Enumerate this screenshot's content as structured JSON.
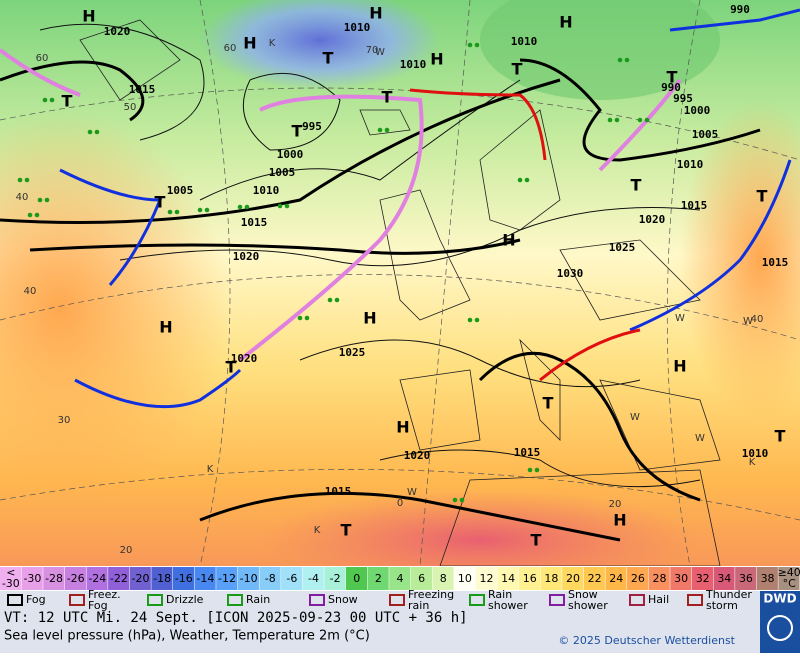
{
  "map": {
    "isobar_labels": [
      "1020",
      "1010",
      "1010",
      "1010",
      "1015",
      "995",
      "1000",
      "1005",
      "1010",
      "1005",
      "1015",
      "1020",
      "1030",
      "1025",
      "1020",
      "1015",
      "1010",
      "1005",
      "1000",
      "995",
      "990",
      "990",
      "1025",
      "1020",
      "1020",
      "1015",
      "1015",
      "1010",
      "1015"
    ],
    "high_labels": [
      "H",
      "H",
      "H",
      "H",
      "H",
      "H",
      "H",
      "H",
      "H",
      "H",
      "H"
    ],
    "low_labels": [
      "T",
      "T",
      "T",
      "T",
      "T",
      "T",
      "T",
      "T",
      "T",
      "T",
      "T",
      "T",
      "T",
      "T"
    ],
    "field_labels": [
      "60",
      "60",
      "50",
      "70",
      "40",
      "40",
      "30",
      "20",
      "0",
      "20",
      "40",
      "K",
      "W",
      "W",
      "K",
      "K",
      "W",
      "K",
      "W",
      "W",
      "W"
    ]
  },
  "scale": {
    "low_end": {
      "lines": [
        "<",
        "-30"
      ],
      "color": "#f0b0f0"
    },
    "high_end": {
      "lines": [
        "≥40",
        "°C"
      ],
      "color": "#a89080"
    },
    "steps": [
      {
        "label": "-30",
        "color": "#e8a0e8"
      },
      {
        "label": "-28",
        "color": "#d890e0"
      },
      {
        "label": "-26",
        "color": "#c880e0"
      },
      {
        "label": "-24",
        "color": "#b070e0"
      },
      {
        "label": "-22",
        "color": "#9060d8"
      },
      {
        "label": "-20",
        "color": "#7060d0"
      },
      {
        "label": "-18",
        "color": "#5060d0"
      },
      {
        "label": "-16",
        "color": "#4070e0"
      },
      {
        "label": "-14",
        "color": "#4888f0"
      },
      {
        "label": "-12",
        "color": "#58a0f8"
      },
      {
        "label": "-10",
        "color": "#70b8f8"
      },
      {
        "label": "-8",
        "color": "#88ccf8"
      },
      {
        "label": "-6",
        "color": "#a0e0f8"
      },
      {
        "label": "-4",
        "color": "#b0f0f0"
      },
      {
        "label": "-2",
        "color": "#a8f0d8"
      },
      {
        "label": "0",
        "color": "#50c850"
      },
      {
        "label": "2",
        "color": "#70d870"
      },
      {
        "label": "4",
        "color": "#98e488"
      },
      {
        "label": "6",
        "color": "#b8ec98"
      },
      {
        "label": "8",
        "color": "#d8f4b0"
      },
      {
        "label": "10",
        "color": "#fffff4"
      },
      {
        "label": "12",
        "color": "#fffbd0"
      },
      {
        "label": "14",
        "color": "#fff8b0"
      },
      {
        "label": "16",
        "color": "#fff090"
      },
      {
        "label": "18",
        "color": "#ffe878"
      },
      {
        "label": "20",
        "color": "#ffd860"
      },
      {
        "label": "22",
        "color": "#ffc850"
      },
      {
        "label": "24",
        "color": "#ffb848"
      },
      {
        "label": "26",
        "color": "#ffa850"
      },
      {
        "label": "28",
        "color": "#f89060"
      },
      {
        "label": "30",
        "color": "#f07868"
      },
      {
        "label": "32",
        "color": "#e86070"
      },
      {
        "label": "34",
        "color": "#d85878"
      },
      {
        "label": "36",
        "color": "#c86878"
      },
      {
        "label": "38",
        "color": "#b08070"
      }
    ]
  },
  "legend": {
    "items": [
      {
        "lines": [
          "Fog"
        ]
      },
      {
        "lines": [
          "Freez.",
          "Fog"
        ]
      },
      {
        "lines": [
          "Drizzle"
        ]
      },
      {
        "lines": [
          "Rain"
        ]
      },
      {
        "lines": [
          "Snow"
        ]
      },
      {
        "lines": [
          "Freezing",
          "rain"
        ]
      },
      {
        "lines": [
          "Rain",
          "shower"
        ]
      },
      {
        "lines": [
          "Snow",
          "shower"
        ]
      },
      {
        "lines": [
          "Hail"
        ]
      },
      {
        "lines": [
          "Thunder",
          "storm"
        ]
      }
    ]
  },
  "footer": {
    "valid_time": "VT: 12 UTC Mi.  24 Sept. [ICON 2025-09-23  00 UTC + 36 h]",
    "description": "Sea level pressure (hPa), Weather, Temperature 2m (°C)",
    "copyright": "© 2025 Deutscher Wetterdienst",
    "logo": "DWD"
  }
}
